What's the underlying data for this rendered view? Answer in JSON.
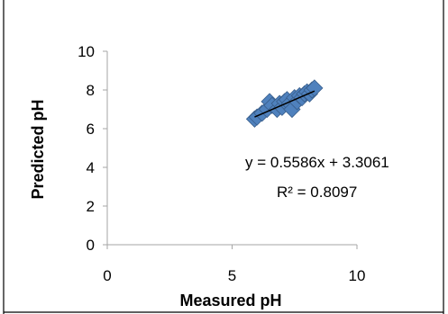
{
  "chart_data": {
    "type": "scatter",
    "xlabel": "Measured pH",
    "ylabel": "Predicted pH",
    "xlim": [
      0,
      10
    ],
    "ylim": [
      0,
      10
    ],
    "x_ticks": [
      "0",
      "5",
      "10"
    ],
    "y_ticks": [
      "0",
      "2",
      "4",
      "6",
      "8",
      "10"
    ],
    "grid": false,
    "legend": "none",
    "marker": "diamond",
    "colors": {
      "marker": "#4f81bd",
      "marker_edge": "#385d8a",
      "trendline": "#000000",
      "axis": "#a6a6a6",
      "frame": "#000000"
    },
    "points": [
      {
        "x": 5.9,
        "y": 6.5
      },
      {
        "x": 6.0,
        "y": 6.6
      },
      {
        "x": 6.2,
        "y": 6.8
      },
      {
        "x": 6.4,
        "y": 7.0
      },
      {
        "x": 6.5,
        "y": 7.4
      },
      {
        "x": 6.6,
        "y": 7.2
      },
      {
        "x": 6.8,
        "y": 7.0
      },
      {
        "x": 6.9,
        "y": 7.3
      },
      {
        "x": 7.0,
        "y": 7.1
      },
      {
        "x": 7.1,
        "y": 7.4
      },
      {
        "x": 7.2,
        "y": 7.5
      },
      {
        "x": 7.3,
        "y": 7.3
      },
      {
        "x": 7.4,
        "y": 7.0
      },
      {
        "x": 7.5,
        "y": 7.6
      },
      {
        "x": 7.6,
        "y": 7.4
      },
      {
        "x": 7.7,
        "y": 7.7
      },
      {
        "x": 7.8,
        "y": 7.6
      },
      {
        "x": 7.9,
        "y": 7.8
      },
      {
        "x": 8.0,
        "y": 7.9
      },
      {
        "x": 8.1,
        "y": 7.8
      },
      {
        "x": 8.2,
        "y": 8.0
      },
      {
        "x": 8.3,
        "y": 8.1
      }
    ],
    "trendline": {
      "slope": 0.5586,
      "intercept": 3.3061,
      "x_range": [
        5.9,
        8.3
      ],
      "equation_label": "y = 0.5586x + 3.3061",
      "r2_label": "R² = 0.8097"
    }
  }
}
